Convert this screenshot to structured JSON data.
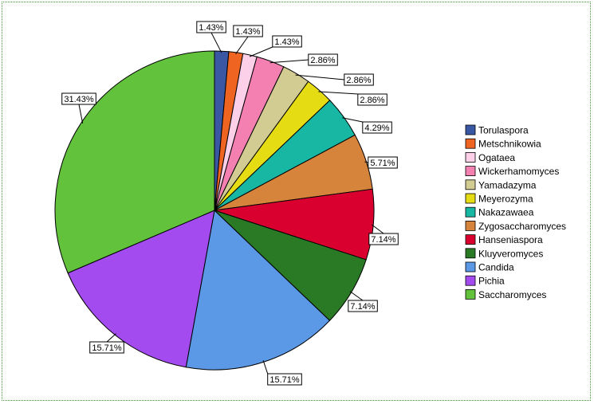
{
  "chart_data": {
    "type": "pie",
    "title": "",
    "legend_position": "right",
    "start_angle": "12 o'clock, clockwise",
    "slices": [
      {
        "name": "Torulaspora",
        "value": 1.43,
        "label": "1.43%",
        "color": "#3a57a4"
      },
      {
        "name": "Metschnikowia",
        "value": 1.43,
        "label": "1.43%",
        "color": "#f06421"
      },
      {
        "name": "Ogataea",
        "value": 1.43,
        "label": "1.43%",
        "color": "#fcd0e8"
      },
      {
        "name": "Wickerhamomyces",
        "value": 2.86,
        "label": "2.86%",
        "color": "#f47fb1"
      },
      {
        "name": "Yamadazyma",
        "value": 2.86,
        "label": "2.86%",
        "color": "#d2cb92"
      },
      {
        "name": "Meyerozyma",
        "value": 2.86,
        "label": "2.86%",
        "color": "#e6dc14"
      },
      {
        "name": "Nakazawaea",
        "value": 4.29,
        "label": "4.29%",
        "color": "#17b7a3"
      },
      {
        "name": "Zygosaccharomyces",
        "value": 5.71,
        "label": "5.71%",
        "color": "#d6843c"
      },
      {
        "name": "Hanseniaspora",
        "value": 7.14,
        "label": "7.14%",
        "color": "#d9002f"
      },
      {
        "name": "Kluyveromyces",
        "value": 7.14,
        "label": "7.14%",
        "color": "#2a7a25"
      },
      {
        "name": "Candida",
        "value": 15.71,
        "label": "15.71%",
        "color": "#5b98e6"
      },
      {
        "name": "Pichia",
        "value": 15.71,
        "label": "15.71%",
        "color": "#a44bf0"
      },
      {
        "name": "Saccharomyces",
        "value": 31.43,
        "label": "31.43%",
        "color": "#62c23b"
      }
    ]
  }
}
